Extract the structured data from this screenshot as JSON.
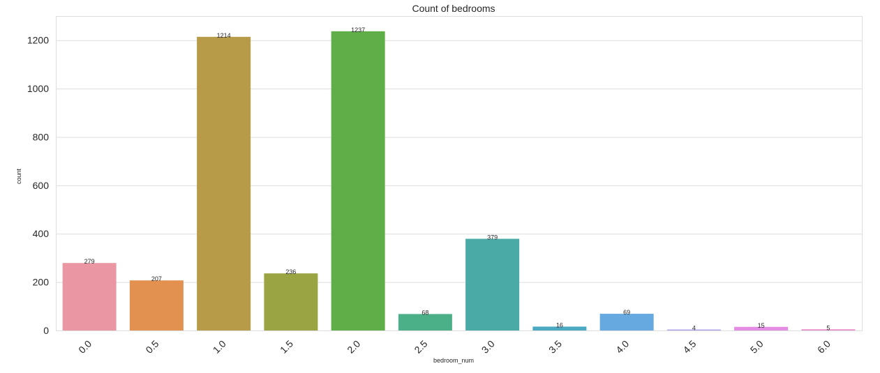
{
  "chart_data": {
    "type": "bar",
    "title": "Count of bedrooms",
    "xlabel": "bedroom_num",
    "ylabel": "count",
    "categories": [
      "0.0",
      "0.5",
      "1.0",
      "1.5",
      "2.0",
      "2.5",
      "3.0",
      "3.5",
      "4.0",
      "4.5",
      "5.0",
      "6.0"
    ],
    "values": [
      279,
      207,
      1214,
      236,
      1237,
      68,
      379,
      16,
      69,
      4,
      15,
      5
    ],
    "data_labels": [
      "279",
      "207",
      "1214",
      "236",
      "1237",
      "68",
      "379",
      "16",
      "69",
      "4",
      "15",
      "5"
    ],
    "colors": [
      "#ea96a3",
      "#e39150",
      "#b89b48",
      "#9aa443",
      "#5fae48",
      "#4bb087",
      "#4aaaa5",
      "#4ba9c2",
      "#65a9e0",
      "#aca3eb",
      "#e38de4",
      "#e990ca"
    ],
    "yticks": [
      "0",
      "200",
      "400",
      "600",
      "800",
      "1000",
      "1200"
    ],
    "ylim": [
      0,
      1300
    ],
    "grid": true,
    "legend": "none"
  }
}
